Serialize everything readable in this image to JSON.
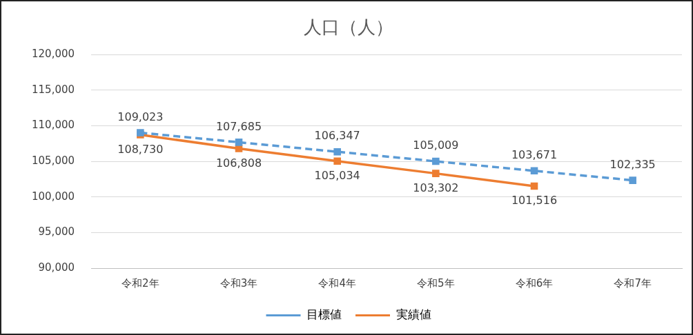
{
  "chart_data": {
    "type": "line",
    "title": "人口（人）",
    "categories": [
      "令和2年",
      "令和3年",
      "令和4年",
      "令和5年",
      "令和6年",
      "令和7年"
    ],
    "series": [
      {
        "name": "目標値",
        "color": "#5b9bd5",
        "line_style": "dashed",
        "values": [
          109023,
          107685,
          106347,
          105009,
          103671,
          102335
        ],
        "value_labels": [
          "109,023",
          "107,685",
          "106,347",
          "105,009",
          "103,671",
          "102,335"
        ]
      },
      {
        "name": "実績値",
        "color": "#ed7d31",
        "line_style": "solid",
        "values": [
          108730,
          106808,
          105034,
          103302,
          101516,
          null
        ],
        "value_labels": [
          "108,730",
          "106,808",
          "105,034",
          "103,302",
          "101,516",
          null
        ]
      }
    ],
    "ylim": [
      90000,
      120000
    ],
    "yticks": [
      {
        "value": 90000,
        "label": "90,000"
      },
      {
        "value": 95000,
        "label": "95,000"
      },
      {
        "value": 100000,
        "label": "100,000"
      },
      {
        "value": 105000,
        "label": "105,000"
      },
      {
        "value": 110000,
        "label": "110,000"
      },
      {
        "value": 115000,
        "label": "115,000"
      },
      {
        "value": 120000,
        "label": "120,000"
      }
    ],
    "grid": "y",
    "legend": "bottom",
    "marker": "square"
  }
}
